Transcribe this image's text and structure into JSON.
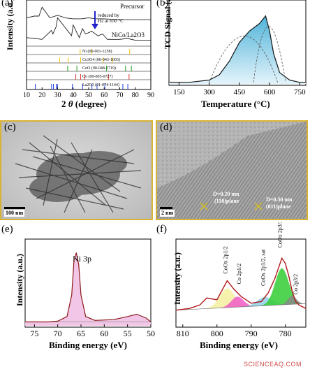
{
  "panels": {
    "a": {
      "label": "(a)",
      "ylabel": "Intensity (a.u.)",
      "xlabel_prefix": "2 ",
      "xlabel_theta": "θ",
      "xlabel_suffix": " (degree)",
      "precursor_label": "Precursor",
      "arrow_text_1": "reduced by",
      "arrow_text_2": "H2 at 650 °C",
      "sample_label": "NiCo/La2O3",
      "refs": [
        {
          "text": "Ni (00-001-1258)",
          "color": "#f0c000"
        },
        {
          "text": "Co3O4 (00-043-1003)",
          "color": "#f0c000"
        },
        {
          "text": "CoO (00-048-1719)",
          "color": "#20a020"
        },
        {
          "text": "Co (00-005-0727)",
          "color": "#e03030"
        },
        {
          "text": "La2O3 (01-074-1144)",
          "color": "#2040e0"
        }
      ]
    },
    "b": {
      "label": "(b)",
      "ylabel": "TCD Signal (a.u.)",
      "xlabel": "Temperature (°C)"
    },
    "c": {
      "label": "(c)",
      "scalebar": "100 nm"
    },
    "d": {
      "label": "(d)",
      "scalebar": "2 nm",
      "ann1_line1": "D=0.20 nm",
      "ann1_line2": "(110)plane",
      "ann2_line1": "D=0.30 nm",
      "ann2_line2": "(011)plane"
    },
    "e": {
      "label": "(e)",
      "peak_label": "Ni 3p",
      "ylabel": "Intensity (a.u.)",
      "xlabel": "Binding energy (eV)"
    },
    "f": {
      "label": "(f)",
      "ylabel": "Intensity (a.u.)",
      "xlabel": "Binding energy (eV)",
      "peaks": [
        "CoOx 2p1/2",
        "Co 2p1/2",
        "CoOx 2p1/2, sat",
        "CoOx 2p3/2",
        "Co 2p3/2"
      ]
    }
  },
  "watermark": "SCIENCEAQ.COM",
  "chart_data": [
    {
      "type": "line",
      "panel": "a",
      "xlabel": "2 θ (degree)",
      "ylabel": "Intensity (a.u.)",
      "xlim": [
        10,
        90
      ],
      "xticks": [
        10,
        20,
        30,
        40,
        50,
        60,
        70,
        80,
        90
      ],
      "series": [
        {
          "name": "Precursor",
          "x": [
            10,
            15,
            18,
            20,
            25,
            30,
            35,
            40,
            45,
            50,
            55,
            60,
            70,
            80,
            90
          ],
          "y": [
            0.8,
            0.82,
            0.82,
            0.92,
            0.8,
            0.83,
            0.8,
            0.79,
            0.79,
            0.8,
            0.79,
            0.79,
            0.78,
            0.78,
            0.78
          ]
        },
        {
          "name": "NiCo/La2O3",
          "x": [
            10,
            15,
            20,
            26,
            27,
            29,
            30,
            39,
            40,
            44,
            46,
            48,
            52,
            56,
            59,
            62,
            70,
            75,
            80,
            90
          ],
          "y": [
            0.58,
            0.57,
            0.56,
            0.66,
            0.62,
            0.7,
            0.8,
            0.6,
            0.72,
            0.58,
            0.68,
            0.62,
            0.65,
            0.6,
            0.62,
            0.56,
            0.56,
            0.57,
            0.55,
            0.55
          ]
        }
      ],
      "reference_ticks": [
        {
          "name": "Ni (00-001-1258)",
          "x": [
            44.5,
            51.8,
            76.4
          ]
        },
        {
          "name": "Co3O4 (00-043-1003)",
          "x": [
            31.3,
            36.8,
            44.8,
            59.4,
            65.2
          ]
        },
        {
          "name": "CoO (00-048-1719)",
          "x": [
            36.5,
            42.4,
            61.5,
            73.7,
            77.5
          ]
        },
        {
          "name": "Co (00-005-0727)",
          "x": [
            41.7,
            44.8,
            47.5,
            62.7,
            76.0
          ]
        },
        {
          "name": "La2O3 (01-074-1144)",
          "x": [
            15.6,
            26.1,
            27.3,
            29.1,
            29.9,
            39.5,
            46.1,
            52.1,
            55.4,
            60.4,
            72.0,
            75.2
          ]
        }
      ]
    },
    {
      "type": "area",
      "panel": "b",
      "xlabel": "Temperature (°C)",
      "ylabel": "TCD Signal (a.u.)",
      "xlim": [
        100,
        780
      ],
      "xticks": [
        150,
        300,
        450,
        600,
        750
      ],
      "series": [
        {
          "name": "",
          "x": [
            100,
            200,
            300,
            350,
            400,
            450,
            500,
            550,
            580,
            600,
            620,
            650,
            700,
            750,
            780
          ],
          "y": [
            0.02,
            0.02,
            0.05,
            0.12,
            0.3,
            0.55,
            0.7,
            0.8,
            0.9,
            0.7,
            0.4,
            0.15,
            0.05,
            0.02,
            0.02
          ]
        }
      ]
    },
    {
      "type": "line",
      "panel": "e",
      "xlabel": "Binding energy (eV)",
      "ylabel": "Intensity (a.u.)",
      "xlim": [
        77,
        50
      ],
      "xticks": [
        75,
        70,
        65,
        60,
        55,
        50
      ],
      "series": [
        {
          "name": "",
          "x": [
            77,
            72,
            70,
            68,
            67,
            66.5,
            66,
            65.5,
            65,
            64,
            62,
            58,
            55,
            53,
            51,
            50
          ],
          "y": [
            0.05,
            0.05,
            0.06,
            0.12,
            0.4,
            0.85,
            0.95,
            0.8,
            0.4,
            0.12,
            0.07,
            0.08,
            0.12,
            0.15,
            0.1,
            0.05
          ]
        }
      ]
    },
    {
      "type": "line",
      "panel": "f",
      "xlabel": "Binding energy (eV)",
      "ylabel": "Intensity (a.u.)",
      "xlim": [
        812,
        774
      ],
      "xticks": [
        810,
        800,
        790,
        780
      ],
      "series": [
        {
          "name": "",
          "x": [
            812,
            808,
            805,
            803,
            800,
            797,
            795,
            793,
            790,
            787,
            785,
            783,
            781,
            780,
            779,
            778,
            777,
            776,
            775,
            774
          ],
          "y": [
            0.18,
            0.2,
            0.24,
            0.32,
            0.3,
            0.52,
            0.42,
            0.34,
            0.26,
            0.28,
            0.38,
            0.55,
            0.78,
            0.72,
            0.58,
            0.4,
            0.28,
            0.24,
            0.22,
            0.2
          ]
        }
      ]
    }
  ]
}
